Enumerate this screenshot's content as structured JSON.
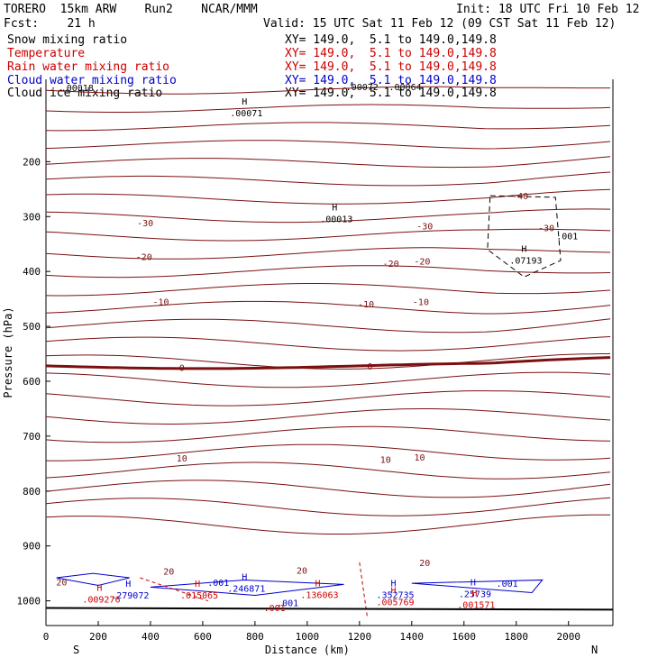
{
  "header": {
    "model": "TORERO  15km ARW    Run2    NCAR/MMM",
    "init": "Init: 18 UTC Fri 10 Feb 12",
    "fcst": "Fcst:    21 h",
    "valid": "Valid: 15 UTC Sat 11 Feb 12 (09 CST Sat 11 Feb 12)"
  },
  "legend": [
    {
      "label": "Snow mixing ratio",
      "xy": "XY= 149.0,  5.1 to 149.0,149.8",
      "color": "#000000"
    },
    {
      "label": "Temperature",
      "xy": "XY= 149.0,  5.1 to 149.0,149.8",
      "color": "#cc0000"
    },
    {
      "label": "Rain water mixing ratio",
      "xy": "XY= 149.0,  5.1 to 149.0,149.8",
      "color": "#cc0000"
    },
    {
      "label": "Cloud water mixing ratio",
      "xy": "XY= 149.0,  5.1 to 149.0,149.8",
      "color": "#0000cc"
    },
    {
      "label": "Cloud ice mixing ratio",
      "xy": "XY= 149.0,  5.1 to 149.0,149.8",
      "color": "#000000"
    }
  ],
  "colors": {
    "temperature": "#7a1010",
    "rain": "#cc0000",
    "cloud_water": "#0000cc",
    "ice": "#000000",
    "axis": "#000000"
  },
  "chart_data": {
    "type": "contour",
    "xlabel": "Distance (km)",
    "ylabel": "Pressure (hPa)",
    "xlim": [
      0,
      2170
    ],
    "ylim": [
      50,
      1045
    ],
    "x_ticks": [
      0,
      200,
      400,
      600,
      800,
      1000,
      1200,
      1400,
      1600,
      1800,
      2000
    ],
    "y_ticks": [
      200,
      300,
      400,
      500,
      600,
      700,
      800,
      900,
      1000
    ],
    "x_end_labels": {
      "left": "S",
      "right": "N"
    },
    "temperature_labels": [
      {
        "x": 380,
        "p": 311,
        "text": "-30"
      },
      {
        "x": 1450,
        "p": 317,
        "text": "-30"
      },
      {
        "x": 1915,
        "p": 320,
        "text": "-30"
      },
      {
        "x": 1815,
        "p": 262,
        "text": "-40"
      },
      {
        "x": 375,
        "p": 373,
        "text": "-20"
      },
      {
        "x": 1320,
        "p": 385,
        "text": "-20"
      },
      {
        "x": 1440,
        "p": 381,
        "text": "-20"
      },
      {
        "x": 440,
        "p": 455,
        "text": "-10"
      },
      {
        "x": 1225,
        "p": 459,
        "text": "-10"
      },
      {
        "x": 1435,
        "p": 455,
        "text": "-10"
      },
      {
        "x": 520,
        "p": 575,
        "text": "0"
      },
      {
        "x": 1240,
        "p": 572,
        "text": "0"
      },
      {
        "x": 520,
        "p": 740,
        "text": "10"
      },
      {
        "x": 1300,
        "p": 742,
        "text": "10"
      },
      {
        "x": 1430,
        "p": 738,
        "text": "10"
      },
      {
        "x": 470,
        "p": 946,
        "text": "20"
      },
      {
        "x": 980,
        "p": 944,
        "text": "20"
      },
      {
        "x": 1450,
        "p": 930,
        "text": "20"
      },
      {
        "x": 60,
        "p": 965,
        "text": "20"
      }
    ],
    "maxima": [
      {
        "x": 760,
        "p": 104,
        "label": ".00071",
        "color": "#000000"
      },
      {
        "x": 1105,
        "p": 297,
        "label": ".00013",
        "color": "#000000"
      },
      {
        "x": 1830,
        "p": 373,
        "label": ".07193",
        "color": "#000000"
      },
      {
        "x": 315,
        "p": 983,
        "label": ".279072",
        "color": "#0000cc"
      },
      {
        "x": 760,
        "p": 970,
        "label": ".246871",
        "color": "#0000cc"
      },
      {
        "x": 1330,
        "p": 982,
        "label": ".352735",
        "color": "#0000cc"
      },
      {
        "x": 1635,
        "p": 980,
        "label": ".25739",
        "color": "#0000cc"
      },
      {
        "x": 1040,
        "p": 982,
        "label": ".136063",
        "color": "#cc0000"
      },
      {
        "x": 580,
        "p": 983,
        "label": ".015065",
        "color": "#cc0000"
      },
      {
        "x": 1330,
        "p": 995,
        "label": ".005769",
        "color": "#cc0000"
      },
      {
        "x": 1640,
        "p": 1000,
        "label": ".001571",
        "color": "#cc0000"
      },
      {
        "x": 205,
        "p": 990,
        "label": ".009276",
        "color": "#cc0000"
      }
    ],
    "value_labels": [
      {
        "x": 120,
        "p": 65,
        "text": ".00018",
        "color": "#000000"
      },
      {
        "x": 1210,
        "p": 63,
        "text": ".00072",
        "color": "#000000"
      },
      {
        "x": 1375,
        "p": 63,
        "text": ".00064",
        "color": "#000000"
      },
      {
        "x": 1995,
        "p": 335,
        "text": ".001",
        "color": "#000000"
      },
      {
        "x": 660,
        "p": 966,
        "text": ".001",
        "color": "#0000cc"
      },
      {
        "x": 925,
        "p": 1003,
        "text": ".001",
        "color": "#0000cc"
      },
      {
        "x": 1765,
        "p": 968,
        "text": ".001",
        "color": "#0000cc"
      },
      {
        "x": 875,
        "p": 1012,
        "text": ".001",
        "color": "#cc0000"
      }
    ]
  }
}
